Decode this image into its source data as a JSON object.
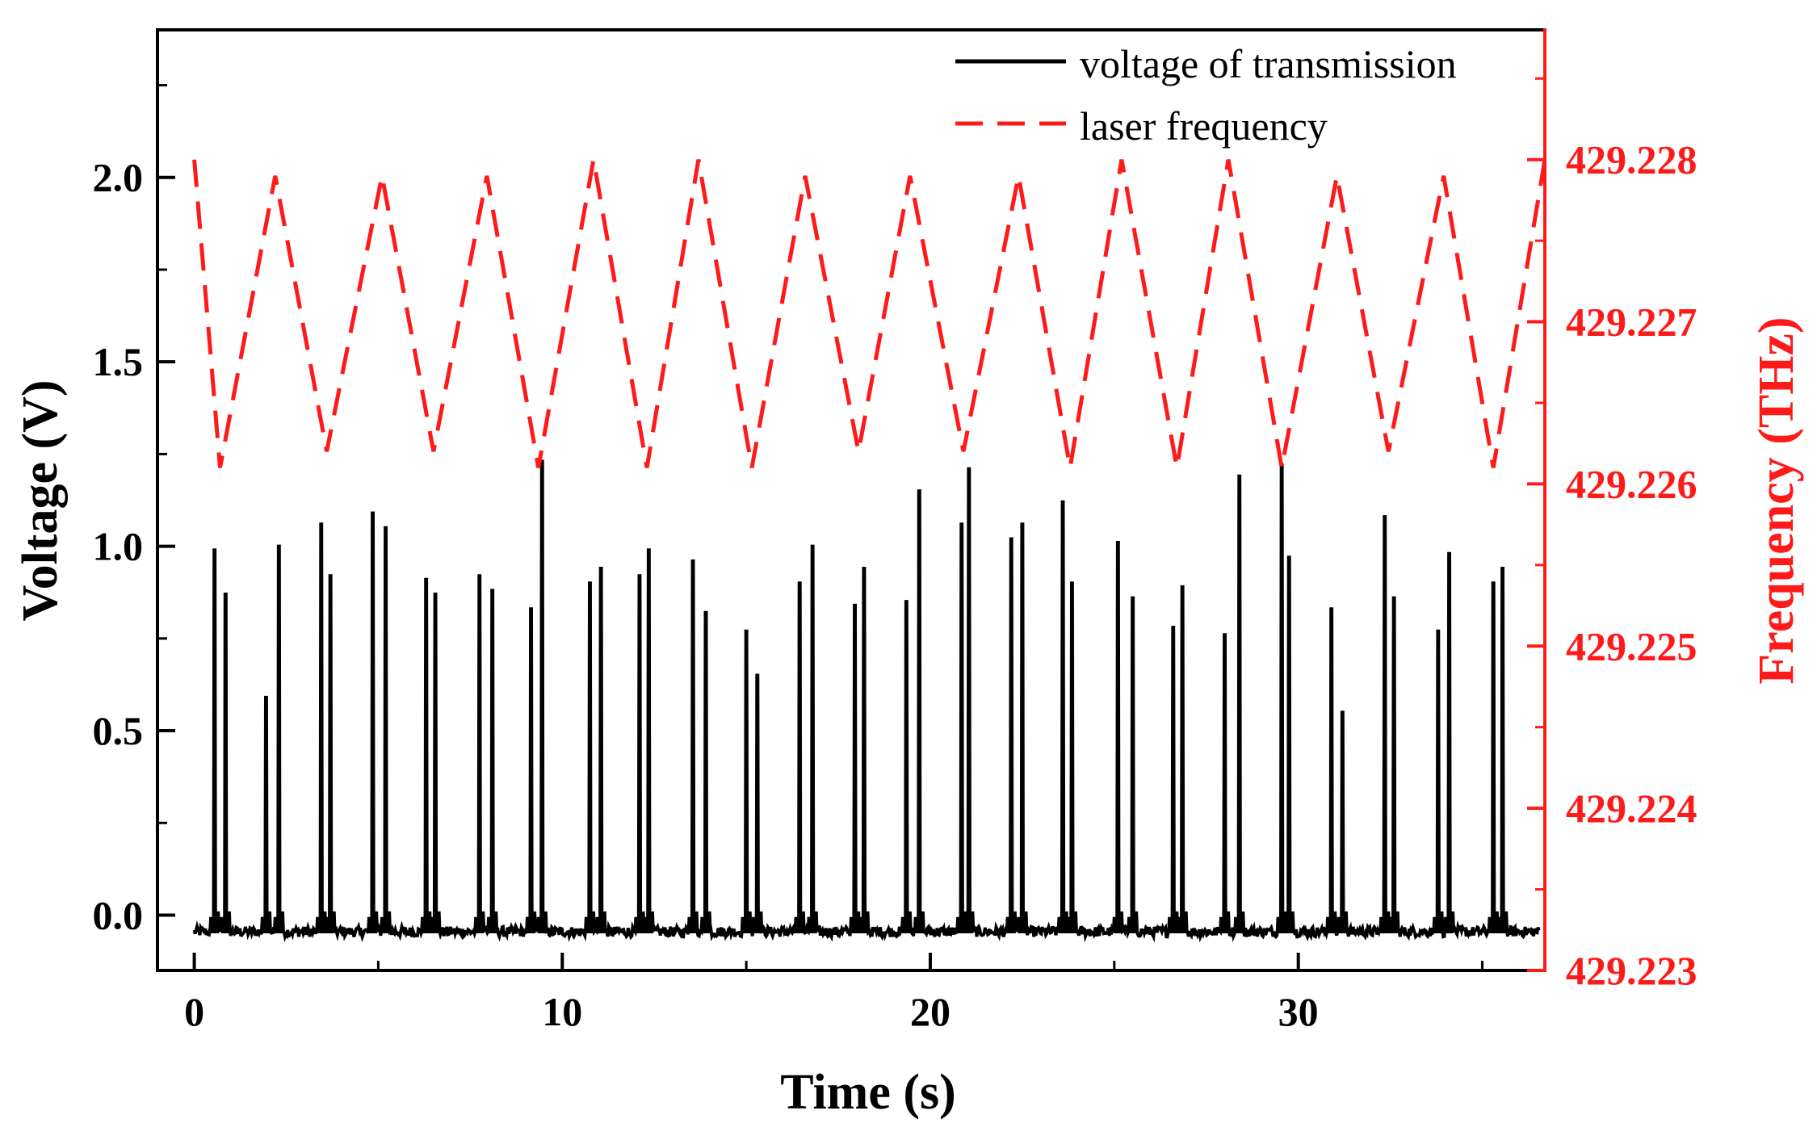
{
  "chart_data": {
    "type": "line",
    "title": "",
    "xlabel": "Time (s)",
    "ylabel_left": "Voltage (V)",
    "ylabel_right": "Frequency (THz)",
    "xlim": [
      -1,
      36.7
    ],
    "ylim_left": [
      -0.15,
      2.4
    ],
    "ylim_right": [
      429.223,
      429.2288
    ],
    "x_ticks": [
      0,
      10,
      20,
      30
    ],
    "x_tick_labels": [
      "0",
      "10",
      "20",
      "30"
    ],
    "y_left_ticks": [
      0.0,
      0.5,
      1.0,
      1.5,
      2.0
    ],
    "y_left_tick_labels": [
      "0.0",
      "0.5",
      "1.0",
      "1.5",
      "2.0"
    ],
    "y_right_ticks": [
      429.223,
      429.224,
      429.225,
      429.226,
      429.227,
      429.228
    ],
    "y_right_tick_labels": [
      "429.223",
      "429.224",
      "429.225",
      "429.226",
      "429.227",
      "429.228"
    ],
    "colors": {
      "voltage": "#000000",
      "frequency": "#ff1a1a",
      "right_axis": "#ff1a1a"
    },
    "legend": {
      "position": "top-right",
      "entries": [
        {
          "label": "voltage of transmission",
          "style": "solid",
          "color": "#000000"
        },
        {
          "label": "laser frequency",
          "style": "dashed",
          "color": "#ff1a1a"
        }
      ]
    },
    "series": [
      {
        "name": "voltage of transmission",
        "axis": "left",
        "baseline": -0.045,
        "peaks": [
          [
            0.55,
            0.99
          ],
          [
            0.85,
            0.87
          ],
          [
            1.95,
            0.59
          ],
          [
            2.3,
            1.0
          ],
          [
            3.45,
            1.06
          ],
          [
            3.7,
            0.92
          ],
          [
            4.85,
            1.09
          ],
          [
            5.2,
            1.05
          ],
          [
            6.3,
            0.91
          ],
          [
            6.55,
            0.87
          ],
          [
            7.75,
            0.92
          ],
          [
            8.1,
            0.88
          ],
          [
            9.15,
            0.83
          ],
          [
            9.45,
            1.23
          ],
          [
            10.75,
            0.9
          ],
          [
            11.05,
            0.94
          ],
          [
            12.1,
            0.92
          ],
          [
            12.35,
            0.99
          ],
          [
            13.55,
            0.96
          ],
          [
            13.9,
            0.82
          ],
          [
            15.0,
            0.77
          ],
          [
            15.3,
            0.65
          ],
          [
            16.45,
            0.9
          ],
          [
            16.8,
            1.0
          ],
          [
            17.95,
            0.84
          ],
          [
            18.2,
            0.94
          ],
          [
            19.35,
            0.85
          ],
          [
            19.7,
            1.15
          ],
          [
            20.85,
            1.06
          ],
          [
            21.05,
            1.21
          ],
          [
            22.2,
            1.02
          ],
          [
            22.5,
            1.06
          ],
          [
            23.6,
            1.12
          ],
          [
            23.85,
            0.9
          ],
          [
            25.1,
            1.01
          ],
          [
            25.5,
            0.86
          ],
          [
            26.6,
            0.78
          ],
          [
            26.85,
            0.89
          ],
          [
            28.0,
            0.76
          ],
          [
            28.4,
            1.19
          ],
          [
            29.55,
            1.22
          ],
          [
            29.75,
            0.97
          ],
          [
            30.9,
            0.83
          ],
          [
            31.2,
            0.55
          ],
          [
            32.35,
            1.08
          ],
          [
            32.6,
            0.86
          ],
          [
            33.8,
            0.77
          ],
          [
            34.1,
            0.98
          ],
          [
            35.3,
            0.9
          ],
          [
            35.55,
            0.94
          ]
        ]
      },
      {
        "name": "laser frequency",
        "axis": "right",
        "points": [
          [
            0.0,
            429.228
          ],
          [
            0.7,
            429.2261
          ],
          [
            2.2,
            429.2279
          ],
          [
            3.6,
            429.2262
          ],
          [
            5.1,
            429.2279
          ],
          [
            6.5,
            429.2262
          ],
          [
            7.95,
            429.2279
          ],
          [
            9.35,
            429.2261
          ],
          [
            10.85,
            429.228
          ],
          [
            12.3,
            429.2261
          ],
          [
            13.7,
            429.228
          ],
          [
            15.15,
            429.2261
          ],
          [
            16.6,
            429.2279
          ],
          [
            18.05,
            429.2262
          ],
          [
            19.45,
            429.2279
          ],
          [
            20.9,
            429.2262
          ],
          [
            22.4,
            429.2279
          ],
          [
            23.8,
            429.2261
          ],
          [
            25.2,
            429.228
          ],
          [
            26.7,
            429.2261
          ],
          [
            28.1,
            429.228
          ],
          [
            29.55,
            429.2261
          ],
          [
            31.05,
            429.2279
          ],
          [
            32.45,
            429.2262
          ],
          [
            33.95,
            429.2279
          ],
          [
            35.3,
            429.2261
          ],
          [
            36.7,
            429.228
          ]
        ]
      }
    ]
  }
}
